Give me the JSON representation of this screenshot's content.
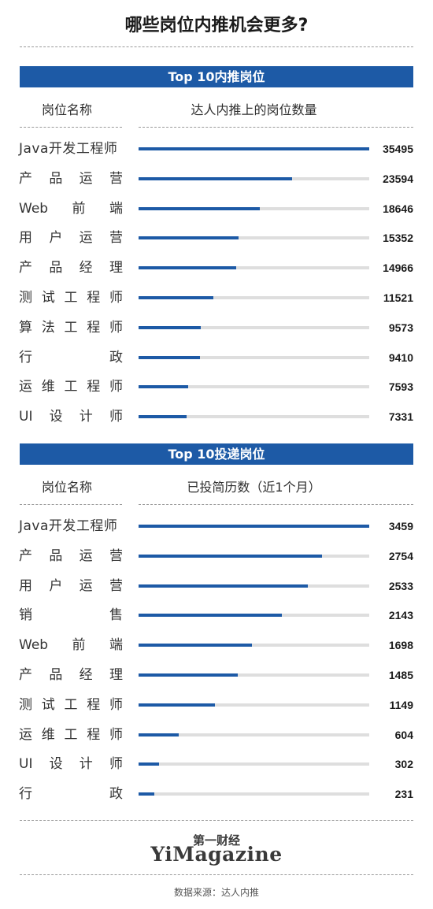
{
  "title": "哪些岗位内推机会更多?",
  "brand": {
    "cn": "第一财经",
    "en": "YiMagazine"
  },
  "source": "数据来源：达人内推",
  "chart_data": [
    {
      "type": "bar",
      "orientation": "horizontal",
      "banner": "Top 10内推岗位",
      "col_label": "岗位名称",
      "col_value": "达人内推上的岗位数量",
      "xlim": [
        0,
        35495
      ],
      "categories": [
        "Java开发工程师",
        "产品运营",
        "Web前端",
        "用户运营",
        "产品经理",
        "测试工程师",
        "算法工程师",
        "行政",
        "运维工程师",
        "UI设计师"
      ],
      "values": [
        35495,
        23594,
        18646,
        15352,
        14966,
        11521,
        9573,
        9410,
        7593,
        7331
      ],
      "value_labels": [
        "35495",
        "23594",
        "18646",
        "15352",
        "14966",
        "11521",
        "9573",
        "9410",
        "7593",
        "7331"
      ]
    },
    {
      "type": "bar",
      "orientation": "horizontal",
      "banner": "Top 10投递岗位",
      "col_label": "岗位名称",
      "col_value": "已投简历数（近1个月）",
      "xlim": [
        0,
        3459
      ],
      "categories": [
        "Java开发工程师",
        "产品运营",
        "用户运营",
        "销售",
        "Web前端",
        "产品经理",
        "测试工程师",
        "运维工程师",
        "UI设计师",
        "行政"
      ],
      "values": [
        3459,
        2754,
        2533,
        2143,
        1698,
        1485,
        1149,
        604,
        302,
        231
      ],
      "value_labels": [
        "3459",
        "2754",
        "2533",
        "2143",
        "1698",
        "1485",
        "1149",
        "604",
        "302",
        "231"
      ]
    }
  ]
}
